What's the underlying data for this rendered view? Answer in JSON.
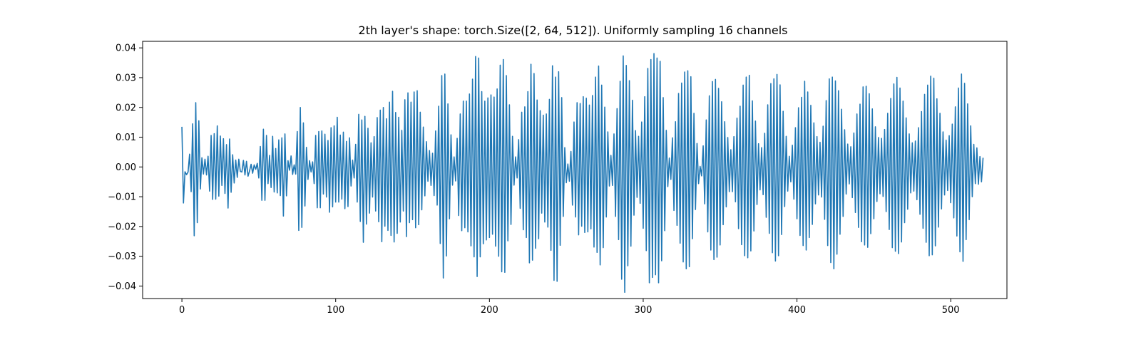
{
  "chart_data": {
    "type": "line",
    "title": "2th layer's shape: torch.Size([2, 64, 512]). Uniformly sampling 16 channels",
    "xlabel": "",
    "ylabel": "",
    "xlim": [
      -25.55,
      536.55
    ],
    "ylim": [
      -0.0442,
      0.0422
    ],
    "xticks": [
      0,
      100,
      200,
      300,
      400,
      500
    ],
    "xtick_labels": [
      "0",
      "100",
      "200",
      "300",
      "400",
      "500"
    ],
    "yticks": [
      -0.04,
      -0.03,
      -0.02,
      -0.01,
      0.0,
      0.01,
      0.02,
      0.03,
      0.04
    ],
    "ytick_labels": [
      "−0.04",
      "−0.03",
      "−0.02",
      "−0.01",
      "0.00",
      "0.01",
      "0.02",
      "0.03",
      "0.04"
    ],
    "grid": false,
    "legend": "none",
    "series": [
      {
        "color": "#1f77b4",
        "x_start": 0,
        "x_step": 1,
        "values": [
          0.0133,
          -0.0121,
          -0.0016,
          -0.0026,
          -0.0017,
          0.0043,
          -0.0083,
          0.0145,
          -0.0231,
          0.0216,
          -0.0187,
          0.0155,
          -0.0074,
          0.0031,
          -0.0024,
          0.0026,
          -0.0027,
          0.0036,
          -0.0081,
          0.0106,
          -0.0109,
          0.0112,
          -0.0108,
          0.0138,
          -0.0098,
          0.0104,
          -0.0062,
          0.0095,
          -0.0089,
          0.0075,
          -0.0138,
          0.0094,
          -0.0085,
          0.0041,
          -0.0054,
          0.0023,
          -0.0035,
          0.0026,
          -0.0015,
          -0.0017,
          0.0022,
          -0.0027,
          0.0019,
          -0.0031,
          -0.0013,
          0.0009,
          -0.0021,
          0.0007,
          -0.0008,
          0.0012,
          -0.0037,
          0.0069,
          -0.0112,
          0.0127,
          -0.0112,
          0.0106,
          -0.0056,
          0.0039,
          -0.0069,
          0.0103,
          -0.0084,
          0.0062,
          -0.0087,
          0.0091,
          -0.0096,
          0.0098,
          -0.0165,
          0.0111,
          -0.0097,
          0.0021,
          -0.0011,
          0.0037,
          -0.0025,
          0.0007,
          -0.0024,
          0.0119,
          -0.0213,
          0.02,
          -0.0203,
          0.0148,
          -0.0131,
          0.0066,
          -0.0042,
          0.0021,
          -0.0017,
          0.0017,
          -0.0056,
          0.0106,
          -0.0137,
          0.0119,
          -0.0137,
          0.0121,
          -0.0091,
          0.011,
          -0.0101,
          0.0089,
          -0.0152,
          0.0132,
          -0.0134,
          0.0138,
          -0.0118,
          0.0167,
          -0.0118,
          0.0107,
          -0.0108,
          0.0117,
          -0.014,
          0.0086,
          -0.0133,
          0.0098,
          -0.0064,
          0.0023,
          -0.0037,
          0.0076,
          -0.0118,
          0.0177,
          -0.0183,
          0.0158,
          -0.0253,
          0.017,
          -0.0192,
          0.013,
          -0.0155,
          0.0081,
          -0.0101,
          0.0102,
          -0.0148,
          0.0166,
          -0.0184,
          0.0191,
          -0.0251,
          0.02,
          -0.0199,
          0.0162,
          -0.0213,
          0.0218,
          -0.023,
          0.0254,
          -0.0252,
          0.0183,
          -0.0223,
          0.0167,
          -0.0185,
          0.0123,
          -0.0148,
          0.0226,
          -0.0234,
          0.0249,
          -0.0187,
          0.0218,
          -0.0177,
          0.0252,
          -0.0204,
          0.0256,
          -0.0194,
          0.0184,
          -0.0144,
          0.0134,
          -0.0097,
          0.0085,
          -0.0048,
          0.0055,
          -0.0062,
          0.0046,
          -0.0096,
          0.0121,
          -0.0128,
          0.0204,
          -0.0257,
          0.0307,
          -0.0373,
          0.0312,
          -0.0299,
          0.0212,
          -0.0174,
          0.0108,
          -0.0061,
          0.0034,
          -0.0047,
          0.0096,
          -0.0163,
          0.0178,
          -0.0214,
          0.0221,
          -0.0204,
          0.0221,
          -0.0218,
          0.0245,
          -0.0265,
          0.0295,
          -0.0302,
          0.0371,
          -0.0368,
          0.0366,
          -0.0302,
          0.0253,
          -0.0258,
          0.0221,
          -0.0245,
          0.0232,
          -0.0237,
          0.0242,
          -0.0226,
          0.0235,
          -0.0266,
          0.0262,
          -0.03,
          0.0342,
          -0.0352,
          0.0361,
          -0.0354,
          0.0307,
          -0.0248,
          0.0209,
          -0.0193,
          0.0103,
          -0.0061,
          0.0034,
          -0.0037,
          0.0092,
          -0.0139,
          0.0184,
          -0.0211,
          0.0202,
          -0.0237,
          0.0253,
          -0.0322,
          0.0345,
          -0.0313,
          0.0314,
          -0.0273,
          0.0225,
          -0.0241,
          0.0189,
          -0.0155,
          0.0174,
          -0.0185,
          0.0178,
          -0.0202,
          0.0227,
          -0.028,
          0.034,
          -0.0381,
          0.0302,
          -0.0384,
          0.032,
          -0.0263,
          0.0233,
          -0.0166,
          0.0065,
          -0.0053,
          0.001,
          -0.0048,
          0.0052,
          -0.0128,
          0.0151,
          -0.0168,
          0.0216,
          -0.0228,
          0.0213,
          -0.0199,
          0.0236,
          -0.022,
          0.0231,
          -0.0218,
          0.0208,
          -0.0208,
          0.024,
          -0.0269,
          0.0302,
          -0.0287,
          0.0339,
          -0.0329,
          0.0275,
          -0.0271,
          0.0201,
          -0.0168,
          0.0118,
          -0.0064,
          0.0039,
          -0.0062,
          0.0111,
          -0.0166,
          0.0196,
          -0.0244,
          0.0288,
          -0.0377,
          0.0373,
          -0.0421,
          0.0341,
          -0.0332,
          0.029,
          -0.0266,
          0.0224,
          -0.0162,
          0.0122,
          -0.0102,
          0.0103,
          -0.0122,
          0.0151,
          -0.0206,
          0.0236,
          -0.0281,
          0.0331,
          -0.0389,
          0.0361,
          -0.0371,
          0.0381,
          -0.0362,
          0.0366,
          -0.0389,
          0.0355,
          -0.0315,
          0.0233,
          -0.0214,
          0.0123,
          -0.0066,
          0.003,
          -0.0042,
          0.0098,
          -0.0146,
          0.0152,
          -0.0196,
          0.0247,
          -0.0256,
          0.0282,
          -0.0319,
          0.0319,
          -0.0342,
          0.0323,
          -0.0335,
          0.0303,
          -0.0241,
          0.018,
          -0.0143,
          0.0079,
          -0.0056,
          0.0002,
          -0.003,
          0.0071,
          -0.0124,
          0.0158,
          -0.0218,
          0.0239,
          -0.0279,
          0.0287,
          -0.0311,
          0.0294,
          -0.0303,
          0.0264,
          -0.0262,
          0.0219,
          -0.0194,
          0.0152,
          -0.0134,
          0.0099,
          -0.0083,
          0.0058,
          -0.0083,
          0.0102,
          -0.0117,
          0.0164,
          -0.0207,
          0.0204,
          -0.0261,
          0.0275,
          -0.0298,
          0.0302,
          -0.0305,
          0.0308,
          -0.0282,
          0.0222,
          -0.0215,
          0.0154,
          -0.0126,
          0.0078,
          -0.0077,
          0.0065,
          -0.0093,
          0.0113,
          -0.0169,
          0.0209,
          -0.0223,
          0.028,
          -0.0288,
          0.0296,
          -0.0316,
          0.0311,
          -0.0298,
          0.0276,
          -0.0227,
          0.0187,
          -0.0133,
          0.0103,
          -0.0081,
          0.0036,
          -0.005,
          0.0073,
          -0.0108,
          0.0132,
          -0.0174,
          0.0199,
          -0.023,
          0.0234,
          -0.0264,
          0.0288,
          -0.0279,
          0.0252,
          -0.0237,
          0.0207,
          -0.0193,
          0.0148,
          -0.0124,
          0.0102,
          -0.0094,
          0.0083,
          -0.0101,
          0.0137,
          -0.0176,
          0.0223,
          -0.0264,
          0.0296,
          -0.0321,
          0.0302,
          -0.0342,
          0.0289,
          -0.0293,
          0.0256,
          -0.0226,
          0.0194,
          -0.0166,
          0.0125,
          -0.0091,
          0.0077,
          -0.0057,
          0.0068,
          -0.0103,
          0.0114,
          -0.0153,
          0.0178,
          -0.0203,
          0.0211,
          -0.0251,
          0.0269,
          -0.0262,
          0.0271,
          -0.027,
          0.0246,
          -0.0224,
          0.0195,
          -0.0174,
          0.0135,
          -0.0116,
          0.0099,
          -0.009,
          0.0096,
          -0.0099,
          0.0126,
          -0.015,
          0.018,
          -0.021,
          0.023,
          -0.0271,
          0.0279,
          -0.0283,
          0.0301,
          -0.0291,
          0.0265,
          -0.0252,
          0.0221,
          -0.0187,
          0.0165,
          -0.0142,
          0.0111,
          -0.0087,
          0.0081,
          -0.0081,
          0.0087,
          -0.011,
          0.0132,
          -0.0159,
          0.0186,
          -0.0206,
          0.0244,
          -0.0253,
          0.0275,
          -0.0298,
          0.0305,
          -0.0295,
          0.0298,
          -0.0265,
          0.0229,
          -0.0202,
          0.018,
          -0.0141,
          0.0118,
          -0.0094,
          0.009,
          -0.0079,
          0.0105,
          -0.012,
          0.0144,
          -0.0171,
          0.0202,
          -0.0232,
          0.0265,
          -0.0285,
          0.0312,
          -0.0317,
          0.0281,
          -0.0244,
          0.0212,
          -0.0177,
          0.0138,
          -0.01,
          0.0076,
          -0.0056,
          0.0064,
          -0.0058,
          0.0035,
          -0.005,
          0.0029
        ]
      }
    ]
  }
}
